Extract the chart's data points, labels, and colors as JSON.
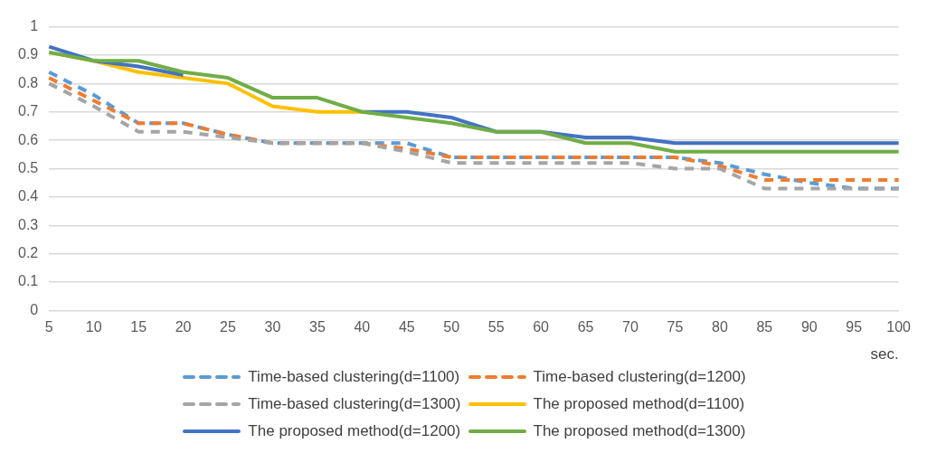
{
  "chart_data": {
    "type": "line",
    "xlabel": "sec.",
    "categories": [
      "5",
      "10",
      "15",
      "20",
      "25",
      "30",
      "35",
      "40",
      "45",
      "50",
      "55",
      "60",
      "65",
      "70",
      "75",
      "80",
      "85",
      "90",
      "95",
      "100"
    ],
    "ylim": [
      0,
      1
    ],
    "yticks": [
      0,
      0.1,
      0.2,
      0.3,
      0.4,
      0.5,
      0.6,
      0.7,
      0.8,
      0.9,
      1
    ],
    "grid": "y",
    "legend": "bottom",
    "marker": "none",
    "series": [
      {
        "name": "Time-based clustering(d=1100)",
        "color": "#5b9bd5",
        "line_style": "dashed",
        "values": [
          0.84,
          0.76,
          0.66,
          0.66,
          0.62,
          0.59,
          0.59,
          0.59,
          0.59,
          0.54,
          0.54,
          0.54,
          0.54,
          0.54,
          0.54,
          0.52,
          0.48,
          0.45,
          0.43,
          0.43
        ]
      },
      {
        "name": "Time-based clustering(d=1200)",
        "color": "#ed7d31",
        "line_style": "dashed",
        "values": [
          0.82,
          0.74,
          0.66,
          0.66,
          0.62,
          0.59,
          0.59,
          0.59,
          0.57,
          0.54,
          0.54,
          0.54,
          0.54,
          0.54,
          0.54,
          0.51,
          0.46,
          0.46,
          0.46,
          0.46
        ]
      },
      {
        "name": "Time-based clustering(d=1300)",
        "color": "#a5a5a5",
        "line_style": "dashed",
        "values": [
          0.8,
          0.72,
          0.63,
          0.63,
          0.61,
          0.59,
          0.59,
          0.59,
          0.56,
          0.52,
          0.52,
          0.52,
          0.52,
          0.52,
          0.5,
          0.5,
          0.43,
          0.43,
          0.43,
          0.43
        ]
      },
      {
        "name": "The proposed method(d=1100)",
        "color": "#ffc000",
        "line_style": "solid",
        "values": [
          0.91,
          0.88,
          0.84,
          0.82,
          0.8,
          0.72,
          0.7,
          0.7,
          null,
          null,
          null,
          null,
          null,
          null,
          null,
          null,
          null,
          null,
          null,
          null
        ]
      },
      {
        "name": "The proposed method(d=1200)",
        "color": "#4472c4",
        "line_style": "solid",
        "values": [
          0.93,
          0.88,
          0.86,
          0.83,
          null,
          null,
          null,
          0.7,
          0.7,
          0.68,
          0.63,
          0.63,
          0.61,
          0.61,
          0.59,
          0.59,
          0.59,
          0.59,
          0.59,
          0.59
        ]
      },
      {
        "name": "The proposed method(d=1300)",
        "color": "#70ad47",
        "line_style": "solid",
        "values": [
          0.91,
          0.88,
          0.88,
          0.84,
          0.82,
          0.75,
          0.75,
          0.7,
          0.68,
          0.66,
          0.63,
          0.63,
          0.59,
          0.59,
          0.56,
          0.56,
          0.56,
          0.56,
          0.56,
          0.56
        ]
      }
    ]
  }
}
